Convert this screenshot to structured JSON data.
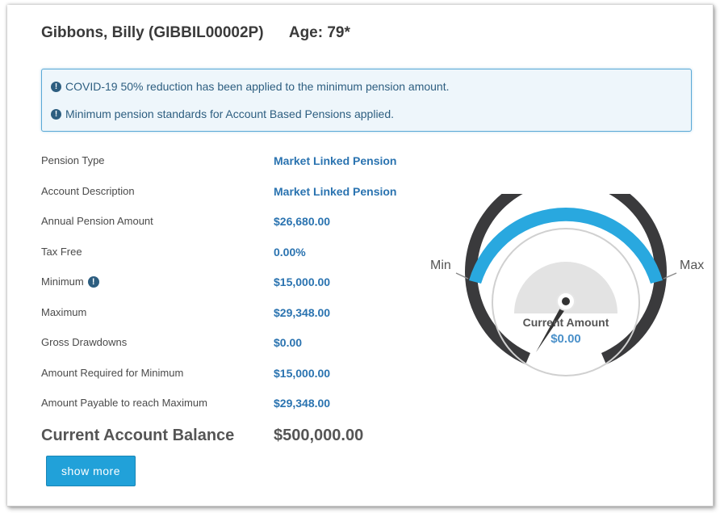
{
  "member": {
    "name": "Gibbons, Billy (GIBBIL00002P)",
    "age": "Age: 79*"
  },
  "alerts": [
    "COVID-19 50% reduction has been applied to the minimum pension amount.",
    "Minimum pension standards for Account Based Pensions applied."
  ],
  "details": [
    {
      "label": "Pension Type",
      "value": "Market Linked Pension"
    },
    {
      "label": "Account Description",
      "value": "Market Linked Pension"
    },
    {
      "label": "Annual Pension Amount",
      "value": "$26,680.00"
    },
    {
      "label": "Tax Free",
      "value": "0.00%"
    },
    {
      "label": "Minimum",
      "value": "$15,000.00"
    },
    {
      "label": "Maximum",
      "value": "$29,348.00"
    },
    {
      "label": "Gross Drawdowns",
      "value": "$0.00"
    },
    {
      "label": "Amount Required for Minimum",
      "value": "$15,000.00"
    },
    {
      "label": "Amount Payable to reach Maximum",
      "value": "$29,348.00"
    }
  ],
  "balance": {
    "label": "Current Account Balance",
    "value": "$500,000.00"
  },
  "actions": {
    "show_more_label": "show more"
  },
  "gauge": {
    "min_label": "Min",
    "max_label": "Max",
    "center_label": "Current Amount",
    "center_value": "$0.00",
    "colors": {
      "range_fill": "#29a8df",
      "outer_fill": "#3a3a3c",
      "value_text": "#4a90c9"
    }
  },
  "icons": {
    "alert": "exclamation-circle-icon",
    "info": "info-circle-icon"
  }
}
